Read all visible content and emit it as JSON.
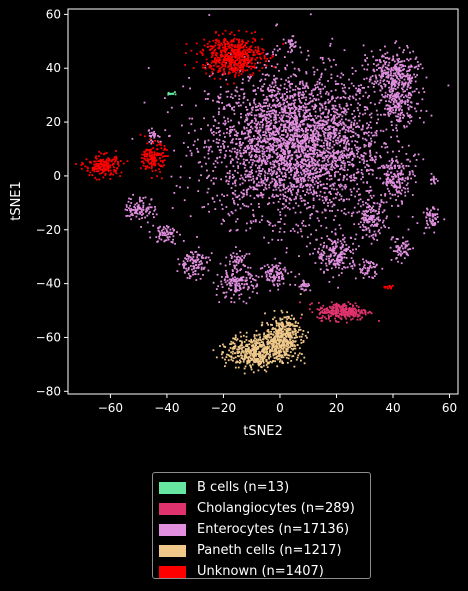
{
  "chart_data": {
    "type": "scatter",
    "xlabel": "tSNE2",
    "ylabel": "tSNE1",
    "xlim": [
      -75,
      63
    ],
    "ylim": [
      -81,
      62
    ],
    "xticks": [
      -60,
      -40,
      -20,
      0,
      20,
      40,
      60
    ],
    "yticks": [
      -80,
      -60,
      -40,
      -20,
      0,
      20,
      40,
      60
    ],
    "xtick_labels": [
      "−60",
      "−40",
      "−20",
      "0",
      "20",
      "40",
      "60"
    ],
    "ytick_labels": [
      "−80",
      "−60",
      "−40",
      "−20",
      "0",
      "20",
      "40",
      "60"
    ],
    "grid": false,
    "legend_position": "below",
    "background": "#000000",
    "series": [
      {
        "name": "B cells (n=13)",
        "color": "#66e6a0",
        "n": 13,
        "clusters": [
          {
            "cx": -39,
            "cy": 31,
            "sx": 0.7,
            "sy": 0.5,
            "n": 13
          }
        ]
      },
      {
        "name": "Cholangiocytes (n=289)",
        "color": "#e0336e",
        "n": 289,
        "clusters": [
          {
            "cx": 22,
            "cy": -50,
            "sx": 5,
            "sy": 1.8,
            "n": 289
          }
        ]
      },
      {
        "name": "Enterocytes (n=17136)",
        "color": "#e28fe0",
        "n": 17136,
        "clusters": [
          {
            "cx": 5,
            "cy": 12,
            "sx": 17,
            "sy": 15,
            "n": 17136
          },
          {
            "cx": 40,
            "cy": 38,
            "sx": 5,
            "sy": 5
          },
          {
            "cx": 42,
            "cy": 27,
            "sx": 3.5,
            "sy": 4
          },
          {
            "cx": 41,
            "cy": -1,
            "sx": 3,
            "sy": 4
          },
          {
            "cx": -50,
            "cy": -12,
            "sx": 3,
            "sy": 2.5
          },
          {
            "cx": -41,
            "cy": -21,
            "sx": 2.5,
            "sy": 2
          },
          {
            "cx": -31,
            "cy": -32,
            "sx": 3,
            "sy": 3
          },
          {
            "cx": -16,
            "cy": -40,
            "sx": 4,
            "sy": 3
          },
          {
            "cx": -15,
            "cy": -31,
            "sx": 2,
            "sy": 1.5
          },
          {
            "cx": -2,
            "cy": -36,
            "sx": 3,
            "sy": 2.5
          },
          {
            "cx": 8,
            "cy": -40,
            "sx": 1.5,
            "sy": 1.5
          },
          {
            "cx": 20,
            "cy": -29,
            "sx": 4,
            "sy": 4
          },
          {
            "cx": 31,
            "cy": -34,
            "sx": 2,
            "sy": 2
          },
          {
            "cx": 32,
            "cy": -16,
            "sx": 3,
            "sy": 4
          },
          {
            "cx": 43,
            "cy": -27,
            "sx": 2,
            "sy": 2.5
          },
          {
            "cx": 53,
            "cy": -16,
            "sx": 1.5,
            "sy": 3
          },
          {
            "cx": 54,
            "cy": -1,
            "sx": 1,
            "sy": 1
          },
          {
            "cx": 4,
            "cy": 49,
            "sx": 1.5,
            "sy": 1.5
          },
          {
            "cx": -45,
            "cy": 15,
            "sx": 1.5,
            "sy": 1.5
          }
        ]
      },
      {
        "name": "Paneth cells (n=1217)",
        "color": "#f0c98a",
        "n": 1217,
        "clusters": [
          {
            "cx": 1,
            "cy": -59,
            "sx": 3.5,
            "sy": 4,
            "n": 1217
          },
          {
            "cx": -8,
            "cy": -65,
            "sx": 6,
            "sy": 3.5
          }
        ]
      },
      {
        "name": "Unknown (n=1407)",
        "color": "#ff0000",
        "n": 1407,
        "clusters": [
          {
            "cx": -17,
            "cy": 45,
            "sx": 6,
            "sy": 4,
            "n": 1407
          },
          {
            "cx": -45,
            "cy": 7,
            "sx": 2.2,
            "sy": 3
          },
          {
            "cx": -63,
            "cy": 4,
            "sx": 3.5,
            "sy": 2.3
          },
          {
            "cx": 38,
            "cy": -41,
            "sx": 1,
            "sy": 0.5
          }
        ]
      }
    ]
  }
}
